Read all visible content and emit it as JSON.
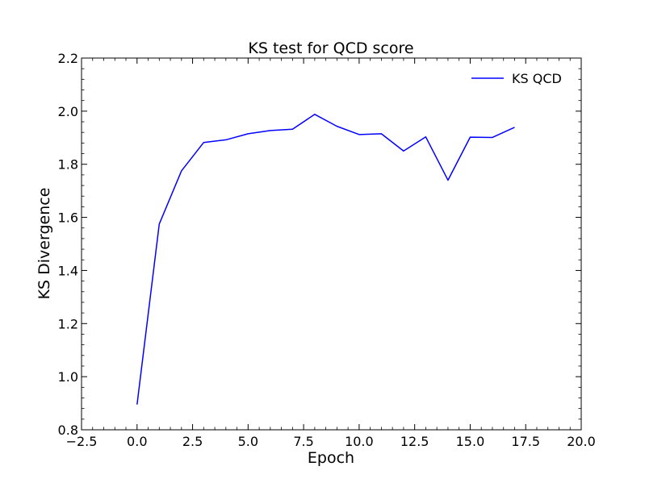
{
  "chart_data": {
    "type": "line",
    "title": "KS test for QCD score",
    "xlabel": "Epoch",
    "ylabel": "KS Divergence",
    "xlim": [
      -2.5,
      20.0
    ],
    "ylim": [
      0.8,
      2.2
    ],
    "xticks": [
      -2.5,
      0.0,
      2.5,
      5.0,
      7.5,
      10.0,
      12.5,
      15.0,
      17.5,
      20.0
    ],
    "xtick_labels": [
      "−2.5",
      "0.0",
      "2.5",
      "5.0",
      "7.5",
      "10.0",
      "12.5",
      "15.0",
      "17.5",
      "20.0"
    ],
    "yticks": [
      0.8,
      1.0,
      1.2,
      1.4,
      1.6,
      1.8,
      2.0,
      2.2
    ],
    "ytick_labels": [
      "0.8",
      "1.0",
      "1.2",
      "1.4",
      "1.6",
      "1.8",
      "2.0",
      "2.2"
    ],
    "grid": false,
    "legend_position": "top-right",
    "series": [
      {
        "name": "KS QCD",
        "color": "#0000ff",
        "x": [
          0,
          1,
          2,
          3,
          4,
          5,
          6,
          7,
          8,
          9,
          10,
          11,
          12,
          13,
          14,
          15,
          16,
          17
        ],
        "y": [
          0.895,
          1.575,
          1.775,
          1.882,
          1.892,
          1.915,
          1.927,
          1.932,
          1.988,
          1.943,
          1.912,
          1.915,
          1.85,
          1.903,
          1.74,
          1.902,
          1.901,
          1.939
        ]
      }
    ]
  }
}
